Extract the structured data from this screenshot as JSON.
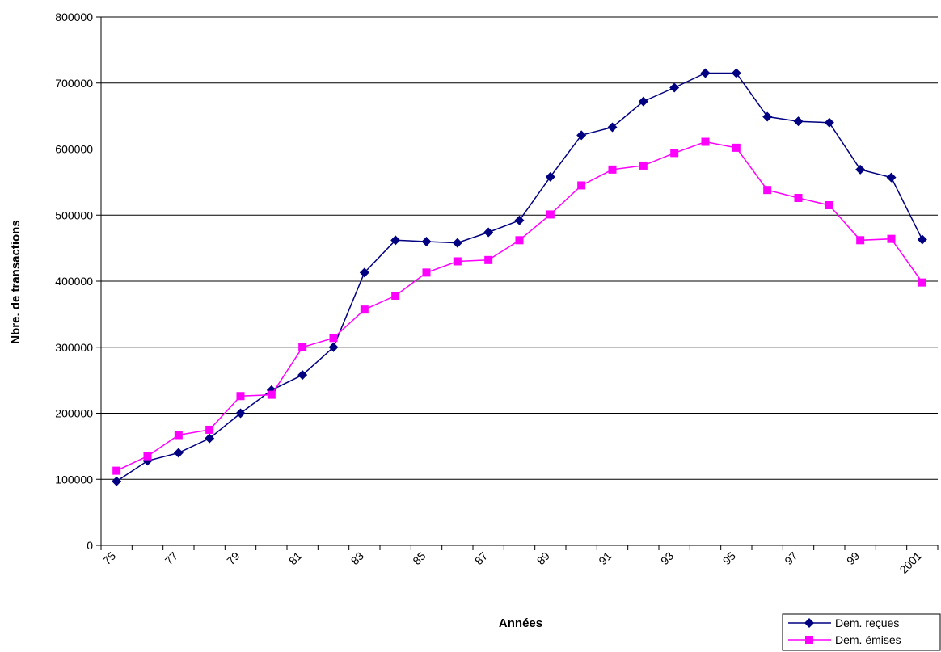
{
  "chart_data": {
    "type": "line",
    "title": "",
    "xlabel": "Années",
    "ylabel": "Nbre. de transactions",
    "ylim": [
      0,
      800000
    ],
    "yticks": [
      "0",
      "100000",
      "200000",
      "300000",
      "400000",
      "500000",
      "600000",
      "700000",
      "800000"
    ],
    "x": [
      1975,
      1976,
      1977,
      1978,
      1979,
      1980,
      1981,
      1982,
      1983,
      1984,
      1985,
      1986,
      1987,
      1988,
      1989,
      1990,
      1991,
      1992,
      1993,
      1994,
      1995,
      1996,
      1997,
      1998,
      1999,
      2000,
      2001
    ],
    "xtick_labels": [
      "75",
      "77",
      "79",
      "81",
      "83",
      "85",
      "87",
      "89",
      "91",
      "93",
      "95",
      "97",
      "99",
      "2001"
    ],
    "grid": true,
    "legend_position": "bottom-right",
    "series": [
      {
        "name": "Dem. reçues",
        "color": "#000080",
        "marker": "diamond",
        "values": [
          97000,
          128000,
          140000,
          162000,
          200000,
          235000,
          258000,
          300000,
          413000,
          462000,
          460000,
          458000,
          474000,
          492000,
          558000,
          621000,
          633000,
          672000,
          693000,
          715000,
          715000,
          649000,
          642000,
          640000,
          569000,
          557000,
          463000
        ]
      },
      {
        "name": "Dem. émises",
        "color": "#ff00ff",
        "marker": "square",
        "values": [
          113000,
          135000,
          167000,
          175000,
          226000,
          228000,
          300000,
          314000,
          357000,
          378000,
          413000,
          430000,
          432000,
          462000,
          501000,
          545000,
          569000,
          575000,
          594000,
          611000,
          602000,
          538000,
          526000,
          515000,
          462000,
          464000,
          398000
        ]
      }
    ]
  }
}
